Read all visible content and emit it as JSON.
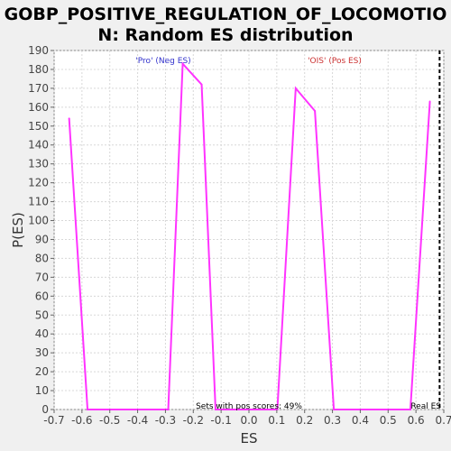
{
  "chart_data": {
    "type": "line",
    "title_lines": [
      "GOBP_POSITIVE_REGULATION_OF_LOCOMOTIO",
      "N: Random ES distribution"
    ],
    "xlabel": "ES",
    "ylabel": "P(ES)",
    "xlim": [
      -0.7,
      0.7
    ],
    "ylim": [
      0,
      190
    ],
    "x_ticks": [
      "-0.7",
      "-0.6",
      "-0.5",
      "-0.4",
      "-0.3",
      "-0.2",
      "-0.1",
      "0.0",
      "0.1",
      "0.2",
      "0.3",
      "0.4",
      "0.5",
      "0.6",
      "0.7"
    ],
    "y_ticks": [
      "0",
      "10",
      "20",
      "30",
      "40",
      "50",
      "60",
      "70",
      "80",
      "90",
      "100",
      "110",
      "120",
      "130",
      "140",
      "150",
      "160",
      "170",
      "180",
      "190"
    ],
    "grid": true,
    "series": [
      {
        "color": "#ff33ff",
        "points": [
          [
            -0.646,
            154
          ],
          [
            -0.58,
            0
          ],
          [
            -0.29,
            0
          ],
          [
            -0.238,
            183
          ],
          [
            -0.17,
            172
          ],
          [
            -0.12,
            0
          ],
          [
            0.0,
            0
          ],
          [
            0.102,
            0
          ],
          [
            0.168,
            170
          ],
          [
            0.237,
            158
          ],
          [
            0.305,
            0
          ],
          [
            0.58,
            0
          ],
          [
            0.65,
            163
          ]
        ]
      }
    ],
    "real_es": 0.685,
    "annotations": {
      "neg": "'Pro' (Neg ES)",
      "pos": "'OIS' (Pos ES)",
      "sets": "Sets with pos scores: 49%",
      "real": "Real ES"
    },
    "colors": {
      "neg": "#3333cc",
      "pos": "#cc3333",
      "line": "#ff33ff",
      "grid": "#d8d8d8"
    }
  }
}
